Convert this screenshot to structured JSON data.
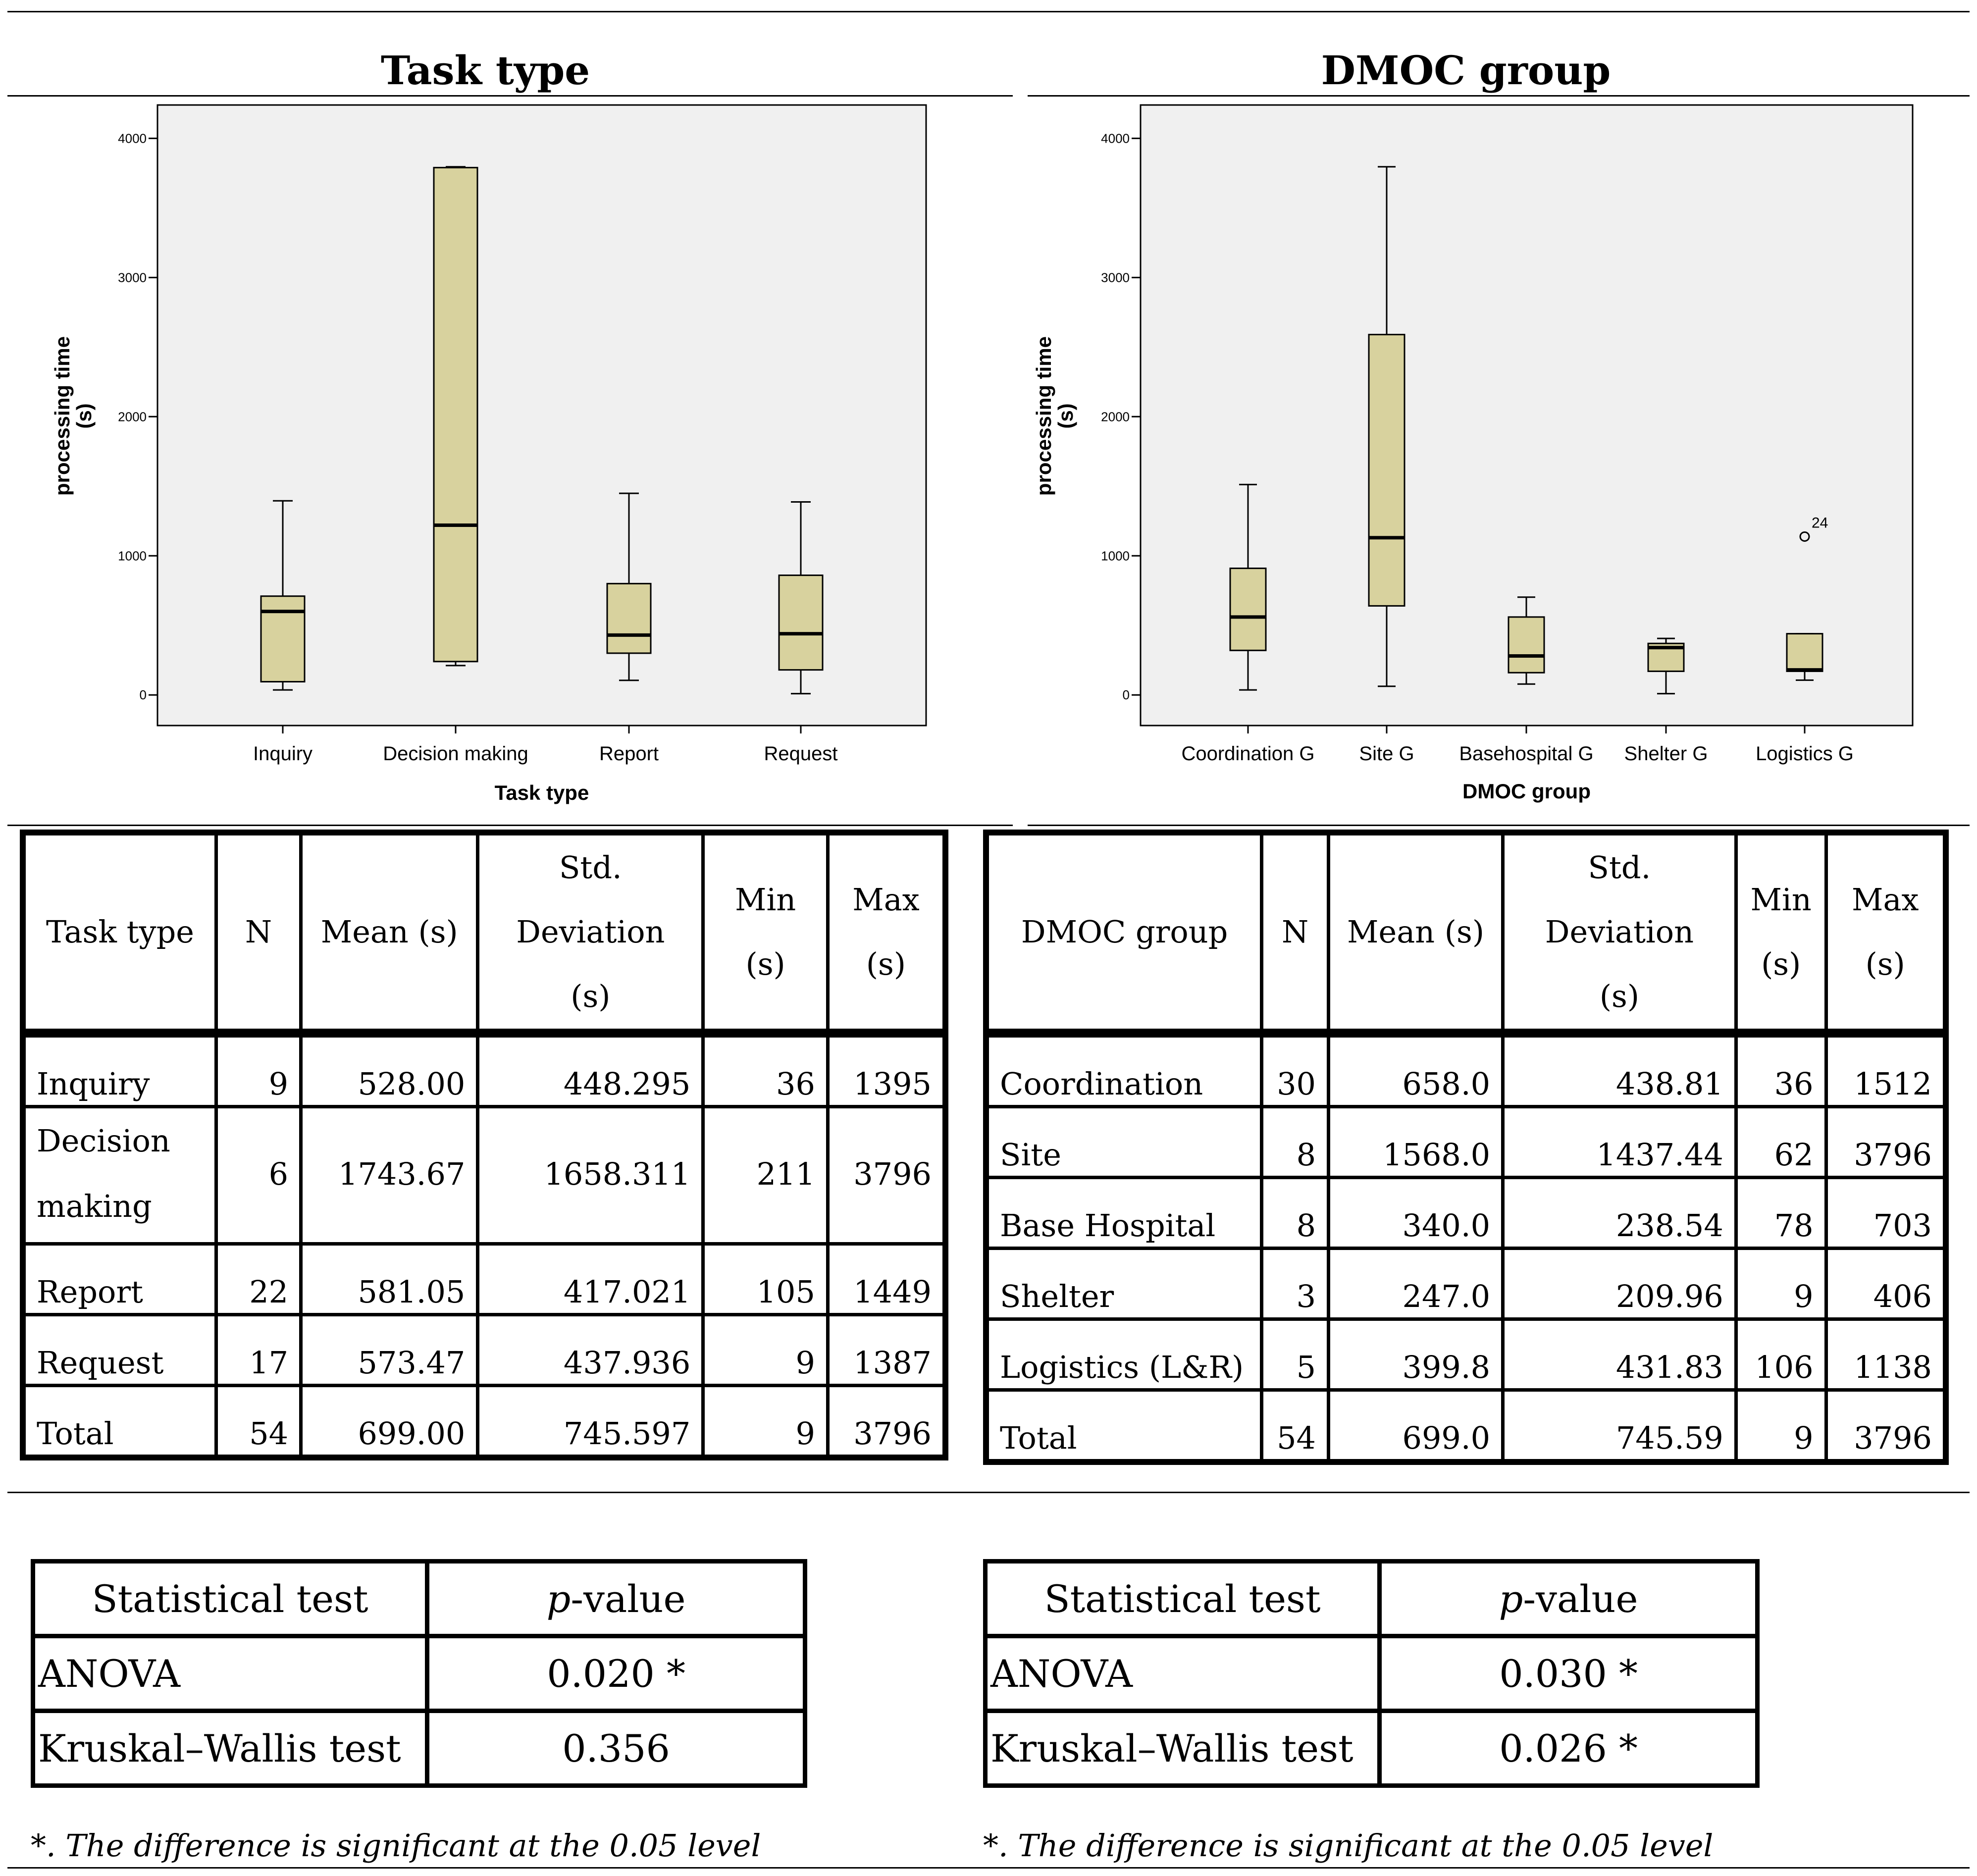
{
  "panels": {
    "left_title": "Task type",
    "right_title": "DMOC group"
  },
  "chart_data": [
    {
      "type": "boxplot",
      "title": "Task type",
      "xlabel": "Task type",
      "ylabel": "processing time (s)",
      "ylim": [
        -220,
        4240
      ],
      "yticks": [
        0,
        1000,
        2000,
        3000,
        4000
      ],
      "tick_labels": [
        "0",
        "1000",
        "2000",
        "3000",
        "4000"
      ],
      "categories": [
        "Inquiry",
        "Decision making",
        "Report",
        "Request"
      ],
      "boxes": [
        {
          "whisker_low": 36,
          "q1": 95,
          "median": 600,
          "q3": 710,
          "whisker_high": 1395
        },
        {
          "whisker_low": 211,
          "q1": 240,
          "median": 1220,
          "q3": 3790,
          "whisker_high": 3796
        },
        {
          "whisker_low": 105,
          "q1": 300,
          "median": 430,
          "q3": 800,
          "whisker_high": 1449
        },
        {
          "whisker_low": 9,
          "q1": 180,
          "median": 440,
          "q3": 860,
          "whisker_high": 1387
        }
      ],
      "outliers": [],
      "box_color": "#d8d29e",
      "plot_bg": "#f0f0f0"
    },
    {
      "type": "boxplot",
      "title": "DMOC group",
      "xlabel": "DMOC group",
      "ylabel": "processing time (s)",
      "ylim": [
        -220,
        4240
      ],
      "yticks": [
        0,
        1000,
        2000,
        3000,
        4000
      ],
      "tick_labels": [
        "0",
        "1000",
        "2000",
        "3000",
        "4000"
      ],
      "categories": [
        "Coordination G",
        "Site G",
        "Basehospital G",
        "Shelter G",
        "Logistics G"
      ],
      "boxes": [
        {
          "whisker_low": 36,
          "q1": 320,
          "median": 560,
          "q3": 910,
          "whisker_high": 1512
        },
        {
          "whisker_low": 62,
          "q1": 640,
          "median": 1130,
          "q3": 2590,
          "whisker_high": 3796
        },
        {
          "whisker_low": 78,
          "q1": 160,
          "median": 280,
          "q3": 560,
          "whisker_high": 703
        },
        {
          "whisker_low": 9,
          "q1": 170,
          "median": 340,
          "q3": 370,
          "whisker_high": 406
        },
        {
          "whisker_low": 106,
          "q1": 170,
          "median": 180,
          "q3": 440,
          "whisker_high": 440
        }
      ],
      "outliers": [
        {
          "category": "Logistics G",
          "value": 1138,
          "label": "24"
        }
      ],
      "box_color": "#d8d29e",
      "plot_bg": "#f0f0f0"
    }
  ],
  "tables": {
    "task": {
      "headers": [
        "Task type",
        "N",
        "Mean (s)",
        "Std. Deviation (s)",
        "Min (s)",
        "Max (s)"
      ],
      "rows": [
        [
          "Inquiry",
          "9",
          "528.00",
          "448.295",
          "36",
          "1395"
        ],
        [
          "Decision making",
          "6",
          "1743.67",
          "1658.311",
          "211",
          "3796"
        ],
        [
          "Report",
          "22",
          "581.05",
          "417.021",
          "105",
          "1449"
        ],
        [
          "Request",
          "17",
          "573.47",
          "437.936",
          "9",
          "1387"
        ],
        [
          "Total",
          "54",
          "699.00",
          "745.597",
          "9",
          "3796"
        ]
      ]
    },
    "dmoc": {
      "headers": [
        "DMOC group",
        "N",
        "Mean (s)",
        "Std. Deviation (s)",
        "Min (s)",
        "Max (s)"
      ],
      "rows": [
        [
          "Coordination",
          "30",
          "658.0",
          "438.81",
          "36",
          "1512"
        ],
        [
          "Site",
          "8",
          "1568.0",
          "1437.44",
          "62",
          "3796"
        ],
        [
          "Base Hospital",
          "8",
          "340.0",
          "238.54",
          "78",
          "703"
        ],
        [
          "Shelter",
          "3",
          "247.0",
          "209.96",
          "9",
          "406"
        ],
        [
          "Logistics (L&R)",
          "5",
          "399.8",
          "431.83",
          "106",
          "1138"
        ],
        [
          "Total",
          "54",
          "699.0",
          "745.59",
          "9",
          "3796"
        ]
      ]
    }
  },
  "stats": {
    "task": {
      "header_test": "Statistical test",
      "header_p_italic": "p",
      "header_p_rest": "-value",
      "rows": [
        [
          "ANOVA",
          "0.020 *"
        ],
        [
          "Kruskal–Wallis test",
          "0.356"
        ]
      ],
      "note": "*. The difference is significant at the 0.05 level"
    },
    "dmoc": {
      "header_test": "Statistical test",
      "header_p_italic": "p",
      "header_p_rest": "-value",
      "rows": [
        [
          "ANOVA",
          "0.030 *"
        ],
        [
          "Kruskal–Wallis test",
          "0.026 *"
        ]
      ],
      "note": "*. The difference is significant at the 0.05 level"
    }
  }
}
